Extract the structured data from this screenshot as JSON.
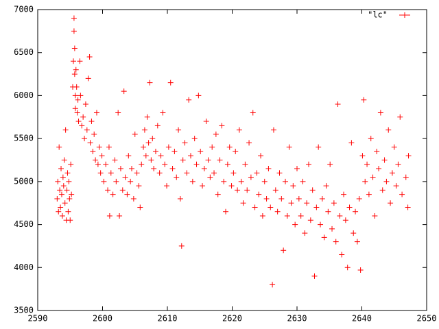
{
  "chart_data": {
    "type": "scatter",
    "xlim": [
      2590,
      2650
    ],
    "xticks": [
      2590,
      2600,
      2610,
      2620,
      2630,
      2640,
      2650
    ],
    "ylim": [
      3500,
      7000
    ],
    "yticks": [
      3500,
      4000,
      4500,
      5000,
      5500,
      6000,
      6500,
      7000
    ],
    "legend": "upper right",
    "x": [
      2593.0,
      2593.1,
      2593.2,
      2593.3,
      2593.4,
      2593.5,
      2593.6,
      2593.7,
      2593.8,
      2593.9,
      2594.0,
      2594.1,
      2594.2,
      2594.3,
      2594.4,
      2594.5,
      2594.6,
      2594.7,
      2594.8,
      2594.9,
      2595.0,
      2595.1,
      2595.2,
      2595.4,
      2595.5,
      2595.6,
      2595.6,
      2595.7,
      2595.7,
      2595.8,
      2595.8,
      2595.9,
      2596.0,
      2596.1,
      2596.2,
      2596.3,
      2596.5,
      2596.6,
      2596.8,
      2597.0,
      2597.2,
      2597.4,
      2597.6,
      2597.8,
      2598.0,
      2598.1,
      2598.3,
      2598.5,
      2598.7,
      2598.9,
      2599.1,
      2599.3,
      2599.5,
      2599.7,
      2599.9,
      2600.2,
      2600.5,
      2600.8,
      2601.0,
      2601.1,
      2601.3,
      2601.6,
      2601.9,
      2602.1,
      2602.4,
      2602.6,
      2602.8,
      2603.1,
      2603.3,
      2603.5,
      2603.8,
      2604.0,
      2604.3,
      2604.5,
      2604.8,
      2605.0,
      2605.3,
      2605.6,
      2605.8,
      2606.0,
      2606.3,
      2606.5,
      2606.7,
      2606.9,
      2607.1,
      2607.3,
      2607.5,
      2607.7,
      2607.9,
      2608.2,
      2608.5,
      2608.8,
      2609.0,
      2609.3,
      2609.6,
      2609.9,
      2610.2,
      2610.5,
      2610.8,
      2611.1,
      2611.4,
      2611.7,
      2612.0,
      2612.2,
      2612.4,
      2612.7,
      2613.0,
      2613.3,
      2613.6,
      2613.9,
      2614.2,
      2614.5,
      2614.8,
      2615.1,
      2615.4,
      2615.7,
      2616.0,
      2616.3,
      2616.6,
      2616.9,
      2617.2,
      2617.5,
      2617.8,
      2618.1,
      2618.4,
      2618.7,
      2619.0,
      2619.3,
      2619.6,
      2619.9,
      2620.2,
      2620.5,
      2620.8,
      2621.1,
      2621.4,
      2621.7,
      2622.0,
      2622.3,
      2622.6,
      2622.9,
      2623.2,
      2623.5,
      2623.8,
      2624.1,
      2624.4,
      2624.7,
      2625.0,
      2625.3,
      2625.6,
      2625.9,
      2626.2,
      2626.4,
      2626.7,
      2627.0,
      2627.3,
      2627.6,
      2627.9,
      2628.2,
      2628.5,
      2628.8,
      2629.1,
      2629.4,
      2629.7,
      2630.0,
      2630.3,
      2630.6,
      2630.9,
      2631.2,
      2631.5,
      2631.8,
      2632.1,
      2632.4,
      2632.7,
      2633.0,
      2633.3,
      2633.6,
      2633.9,
      2634.2,
      2634.5,
      2634.8,
      2635.1,
      2635.4,
      2635.7,
      2636.0,
      2636.3,
      2636.6,
      2636.9,
      2637.2,
      2637.5,
      2637.8,
      2638.1,
      2638.4,
      2638.7,
      2639.0,
      2639.3,
      2639.6,
      2639.8,
      2640.1,
      2640.3,
      2640.5,
      2640.8,
      2641.1,
      2641.4,
      2641.7,
      2642.0,
      2642.3,
      2642.6,
      2642.9,
      2643.2,
      2643.5,
      2643.8,
      2644.1,
      2644.4,
      2644.7,
      2645.0,
      2645.3,
      2645.6,
      2645.9,
      2646.2,
      2646.8,
      2647.1,
      2647.2
    ],
    "series": [
      {
        "name": "\"lc\"",
        "color": "#ff0000",
        "marker": "+",
        "values": [
          4800,
          5000,
          4650,
          5400,
          4900,
          4700,
          5150,
          4850,
          4600,
          5050,
          4950,
          5250,
          4750,
          5600,
          4550,
          4900,
          5100,
          4650,
          5000,
          4800,
          4550,
          5200,
          4850,
          6100,
          6400,
          6900,
          6750,
          6550,
          6250,
          6000,
          5850,
          6300,
          6100,
          5800,
          5950,
          5700,
          6400,
          6000,
          5650,
          5750,
          5500,
          5900,
          5600,
          6200,
          6450,
          5450,
          5700,
          5350,
          5550,
          5250,
          5800,
          5200,
          5400,
          5100,
          5300,
          5000,
          5200,
          4900,
          5400,
          4600,
          5100,
          4850,
          5250,
          5000,
          5800,
          4600,
          5150,
          4900,
          6050,
          5050,
          4850,
          5300,
          5000,
          5150,
          4800,
          5550,
          5100,
          4950,
          4700,
          5200,
          5400,
          5600,
          5300,
          5750,
          5450,
          6150,
          5250,
          5500,
          5150,
          5350,
          5650,
          5100,
          5300,
          5800,
          5200,
          4950,
          5400,
          6150,
          5150,
          5350,
          5050,
          5600,
          4800,
          4250,
          5250,
          5450,
          5100,
          5950,
          5300,
          5000,
          5500,
          5200,
          6000,
          5350,
          4950,
          5150,
          5700,
          5250,
          5050,
          5400,
          5100,
          5550,
          4850,
          5250,
          5650,
          5000,
          4650,
          5200,
          5400,
          4950,
          5100,
          5350,
          4900,
          5600,
          5000,
          4750,
          5200,
          4900,
          5450,
          5050,
          5800,
          4700,
          5100,
          4850,
          5300,
          4600,
          5000,
          4800,
          5150,
          4700,
          3800,
          5600,
          4900,
          4650,
          5100,
          4800,
          4200,
          5000,
          4600,
          5400,
          4750,
          4950,
          4500,
          5150,
          4800,
          4600,
          5000,
          4400,
          4750,
          5200,
          4550,
          4900,
          3900,
          4700,
          5400,
          4500,
          4800,
          4350,
          4950,
          4650,
          5200,
          4450,
          4750,
          4300,
          5900,
          4600,
          4150,
          4850,
          4550,
          4000,
          4700,
          5450,
          4400,
          4650,
          4300,
          4800,
          3970,
          5300,
          5950,
          5000,
          5200,
          4850,
          5500,
          5050,
          4600,
          5350,
          5150,
          5800,
          4900,
          5250,
          5000,
          5600,
          4750,
          5100,
          5400,
          4950,
          5200,
          5750,
          4850,
          5050,
          4700,
          5300
        ]
      }
    ]
  }
}
